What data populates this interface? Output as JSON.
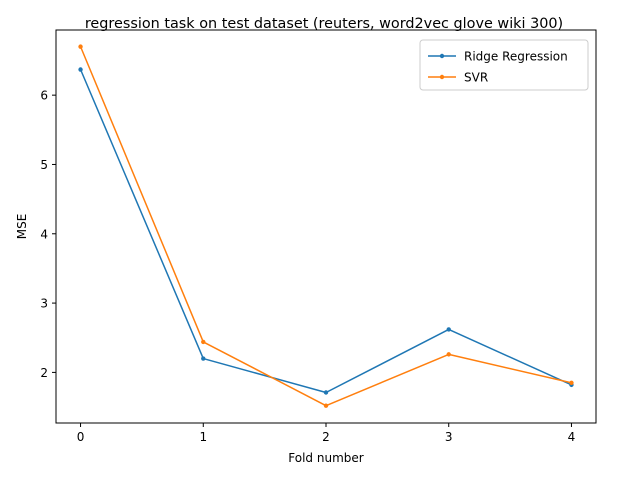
{
  "chart_data": {
    "type": "line",
    "title": "regression task on test dataset (reuters, word2vec glove wiki 300)",
    "xlabel": "Fold number",
    "ylabel": "MSE",
    "x": [
      0,
      1,
      2,
      3,
      4
    ],
    "xticks": [
      "0",
      "1",
      "2",
      "3",
      "4"
    ],
    "yticks": [
      "2",
      "3",
      "4",
      "5",
      "6"
    ],
    "xlim": [
      -0.2,
      4.2
    ],
    "ylim": [
      1.27,
      6.94
    ],
    "grid": false,
    "legend_position": "upper right",
    "series": [
      {
        "name": "Ridge Regression",
        "color": "#1f77b4",
        "marker": "circle",
        "values": [
          6.37,
          2.2,
          1.71,
          2.62,
          1.82
        ]
      },
      {
        "name": "SVR",
        "color": "#ff7f0e",
        "marker": "circle",
        "values": [
          6.7,
          2.44,
          1.52,
          2.26,
          1.85
        ]
      }
    ]
  }
}
